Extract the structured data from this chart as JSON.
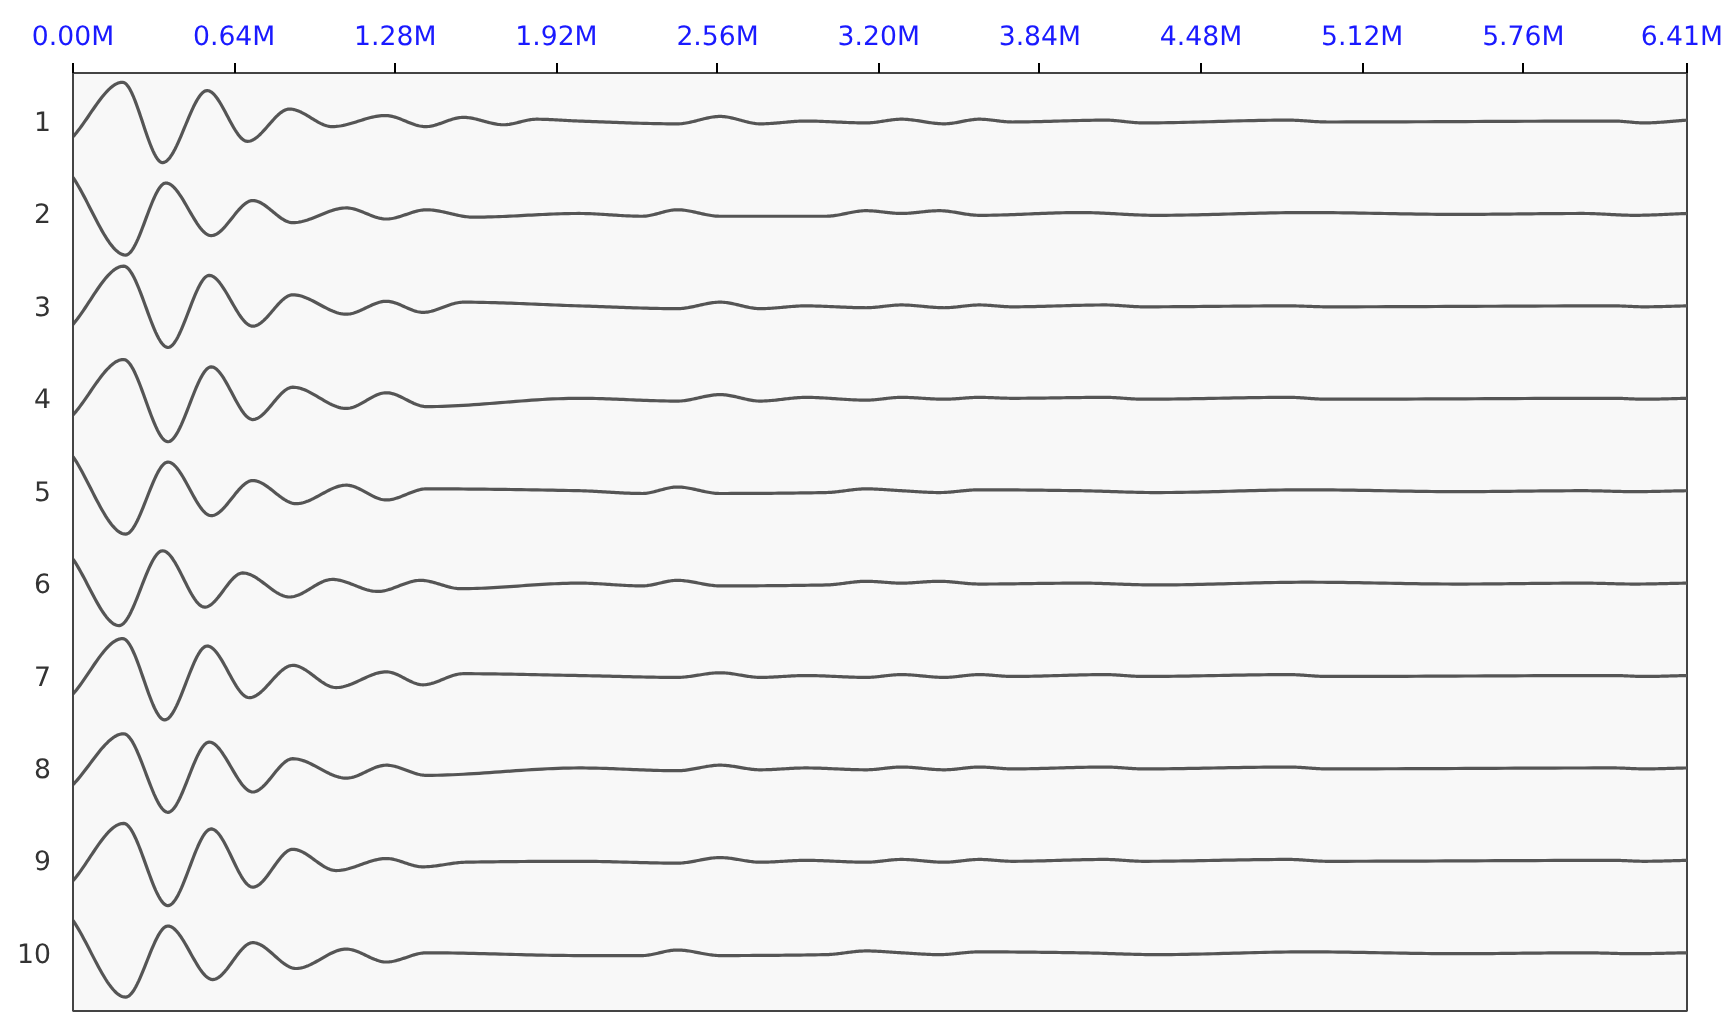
{
  "chart_data": {
    "type": "line",
    "xlim": [
      0,
      6.41
    ],
    "xticks": [
      {
        "value": 0,
        "label": "0.00M"
      },
      {
        "value": 0.64,
        "label": "0.64M"
      },
      {
        "value": 1.28,
        "label": "1.28M"
      },
      {
        "value": 1.92,
        "label": "1.92M"
      },
      {
        "value": 2.56,
        "label": "2.56M"
      },
      {
        "value": 3.2,
        "label": "3.20M"
      },
      {
        "value": 3.84,
        "label": "3.84M"
      },
      {
        "value": 4.48,
        "label": "4.48M"
      },
      {
        "value": 5.12,
        "label": "5.12M"
      },
      {
        "value": 5.76,
        "label": "5.76M"
      },
      {
        "value": 6.41,
        "label": "6.41M"
      }
    ],
    "ylim": [
      10.63,
      0.48
    ],
    "yticks": [
      1,
      2,
      3,
      4,
      5,
      6,
      7,
      8,
      9,
      10
    ],
    "grid": false,
    "series": [
      {
        "color": "#555555",
        "x": [
          0,
          0.197,
          0.356,
          0.533,
          0.693,
          0.86,
          1.03,
          1.24,
          1.4,
          1.55,
          1.71,
          1.84,
          2.01,
          2.4,
          2.57,
          2.73,
          2.91,
          3.15,
          3.29,
          3.46,
          3.6,
          3.73,
          4.1,
          4.25,
          4.83,
          4.98,
          6.12,
          6.24,
          6.41
        ],
        "values": [
          1.17,
          0.58,
          1.45,
          0.67,
          1.22,
          0.87,
          1.06,
          0.94,
          1.06,
          0.96,
          1.04,
          0.98,
          1.0,
          1.03,
          0.95,
          1.03,
          1.0,
          1.02,
          0.98,
          1.03,
          0.98,
          1.01,
          0.99,
          1.02,
          0.99,
          1.01,
          1.0,
          1.02,
          0.99
        ]
      },
      {
        "color": "#555555",
        "x": [
          0,
          0.209,
          0.369,
          0.549,
          0.714,
          0.873,
          1.085,
          1.244,
          1.404,
          1.59,
          2.01,
          2.26,
          2.4,
          2.57,
          2.99,
          3.15,
          3.29,
          3.44,
          3.6,
          4.0,
          4.3,
          4.9,
          5.5,
          6.0,
          6.2,
          6.41
        ],
        "values": [
          1.61,
          2.45,
          1.67,
          2.24,
          1.86,
          2.1,
          1.94,
          2.06,
          1.96,
          2.04,
          2.0,
          2.03,
          1.96,
          2.03,
          2.03,
          1.97,
          2.0,
          1.97,
          2.02,
          1.99,
          2.02,
          1.99,
          2.01,
          2.0,
          2.02,
          2.0
        ]
      },
      {
        "color": "#555555",
        "x": [
          0,
          0.201,
          0.377,
          0.541,
          0.714,
          0.873,
          1.085,
          1.244,
          1.39,
          1.55,
          2.01,
          2.4,
          2.57,
          2.73,
          2.91,
          3.15,
          3.29,
          3.46,
          3.6,
          3.73,
          4.1,
          4.25,
          4.83,
          4.98,
          6.12,
          6.24,
          6.41
        ],
        "values": [
          3.2,
          2.57,
          3.45,
          2.67,
          3.22,
          2.88,
          3.09,
          2.95,
          3.07,
          2.96,
          3.0,
          3.03,
          2.96,
          3.03,
          3.0,
          3.02,
          2.99,
          3.02,
          2.99,
          3.01,
          2.99,
          3.01,
          3.0,
          3.01,
          3.0,
          3.01,
          3.0
        ]
      },
      {
        "color": "#555555",
        "x": [
          0,
          0.201,
          0.377,
          0.549,
          0.714,
          0.873,
          1.085,
          1.244,
          1.404,
          2.01,
          2.4,
          2.57,
          2.73,
          2.91,
          3.15,
          3.29,
          3.46,
          3.6,
          3.73,
          4.1,
          4.25,
          4.83,
          4.98,
          6.12,
          6.24,
          6.41
        ],
        "values": [
          4.18,
          3.58,
          4.47,
          3.66,
          4.23,
          3.88,
          4.11,
          3.94,
          4.09,
          4.0,
          4.03,
          3.96,
          4.03,
          3.99,
          4.02,
          3.99,
          4.01,
          3.99,
          4.0,
          3.99,
          4.01,
          3.99,
          4.01,
          4.0,
          4.01,
          4.0
        ]
      },
      {
        "color": "#555555",
        "x": [
          0,
          0.209,
          0.377,
          0.549,
          0.714,
          0.886,
          1.085,
          1.244,
          1.404,
          2.01,
          2.26,
          2.4,
          2.57,
          2.99,
          3.15,
          3.29,
          3.44,
          3.6,
          4.0,
          4.3,
          4.9,
          5.5,
          6.0,
          6.2,
          6.41
        ],
        "values": [
          4.63,
          5.47,
          4.69,
          5.27,
          4.89,
          5.14,
          4.94,
          5.1,
          4.98,
          5.0,
          5.03,
          4.96,
          5.03,
          5.02,
          4.98,
          5.0,
          5.02,
          4.99,
          5.0,
          5.02,
          4.99,
          5.01,
          5.0,
          5.01,
          5.0
        ]
      },
      {
        "color": "#555555",
        "x": [
          0,
          0.183,
          0.356,
          0.523,
          0.674,
          0.86,
          1.03,
          1.21,
          1.38,
          1.54,
          2.01,
          2.26,
          2.4,
          2.57,
          2.99,
          3.15,
          3.29,
          3.44,
          3.6,
          4.0,
          4.3,
          4.9,
          5.5,
          6.0,
          6.2,
          6.41
        ],
        "values": [
          5.74,
          6.46,
          5.65,
          6.26,
          5.89,
          6.15,
          5.96,
          6.09,
          5.97,
          6.06,
          6.0,
          6.03,
          5.97,
          6.03,
          6.02,
          5.98,
          6.0,
          5.98,
          6.01,
          6.0,
          6.02,
          5.99,
          6.01,
          6.0,
          6.01,
          6.0
        ]
      },
      {
        "color": "#555555",
        "x": [
          0,
          0.197,
          0.364,
          0.533,
          0.7,
          0.873,
          1.045,
          1.244,
          1.39,
          1.55,
          2.01,
          2.4,
          2.57,
          2.73,
          2.91,
          3.15,
          3.29,
          3.46,
          3.6,
          3.73,
          4.1,
          4.25,
          4.83,
          4.98,
          6.12,
          6.24,
          6.41
        ],
        "values": [
          7.2,
          6.6,
          7.48,
          6.68,
          7.24,
          6.89,
          7.13,
          6.96,
          7.1,
          6.98,
          7.0,
          7.02,
          6.97,
          7.02,
          7.0,
          7.02,
          6.99,
          7.02,
          6.99,
          7.01,
          6.99,
          7.01,
          6.99,
          7.01,
          7.0,
          7.01,
          7.0
        ]
      },
      {
        "color": "#555555",
        "x": [
          0,
          0.201,
          0.377,
          0.541,
          0.714,
          0.873,
          1.085,
          1.244,
          1.404,
          2.01,
          2.4,
          2.57,
          2.73,
          2.91,
          3.15,
          3.29,
          3.46,
          3.6,
          3.73,
          4.1,
          4.25,
          4.83,
          4.98,
          6.12,
          6.24,
          6.41
        ],
        "values": [
          8.18,
          7.63,
          8.48,
          7.72,
          8.26,
          7.9,
          8.11,
          7.97,
          8.08,
          8.0,
          8.03,
          7.97,
          8.02,
          8.0,
          8.02,
          7.99,
          8.02,
          7.99,
          8.01,
          7.99,
          8.01,
          7.99,
          8.01,
          8.0,
          8.01,
          8.0
        ]
      },
      {
        "color": "#555555",
        "x": [
          0,
          0.201,
          0.377,
          0.549,
          0.714,
          0.873,
          1.045,
          1.244,
          1.39,
          1.56,
          2.01,
          2.4,
          2.57,
          2.73,
          2.91,
          3.15,
          3.29,
          3.46,
          3.6,
          3.73,
          4.1,
          4.25,
          4.83,
          4.98,
          6.12,
          6.24,
          6.41
        ],
        "values": [
          9.22,
          8.6,
          9.49,
          8.66,
          9.29,
          8.88,
          9.11,
          8.98,
          9.07,
          9.02,
          9.01,
          9.03,
          8.97,
          9.02,
          9.0,
          9.02,
          8.99,
          9.02,
          8.99,
          9.01,
          8.99,
          9.01,
          8.99,
          9.01,
          9.0,
          9.01,
          9.0
        ]
      },
      {
        "color": "#555555",
        "x": [
          0,
          0.209,
          0.377,
          0.555,
          0.714,
          0.886,
          1.085,
          1.244,
          1.404,
          2.01,
          2.26,
          2.4,
          2.57,
          2.99,
          3.15,
          3.29,
          3.44,
          3.6,
          4.0,
          4.3,
          4.9,
          5.5,
          6.0,
          6.2,
          6.41
        ],
        "values": [
          9.65,
          10.48,
          9.71,
          10.29,
          9.89,
          10.17,
          9.96,
          10.1,
          10.0,
          10.03,
          10.03,
          9.97,
          10.03,
          10.02,
          9.98,
          10.0,
          10.02,
          9.99,
          10.0,
          10.02,
          9.99,
          10.01,
          10.0,
          10.01,
          10.0
        ]
      }
    ]
  }
}
